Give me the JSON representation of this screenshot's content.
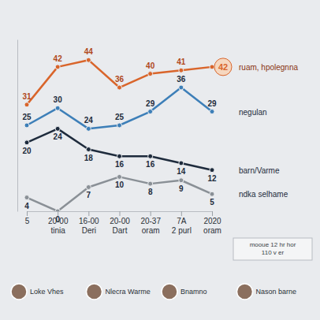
{
  "chart_data": {
    "type": "line",
    "categories": [
      "5",
      "20-00 tinia",
      "16-00 Deri",
      "20-00 Dart",
      "20-37 oram",
      "7A 2 purl",
      "2020 oram"
    ],
    "series": [
      {
        "name": "ruam, hpolegnna",
        "color": "#d9652b",
        "values": [
          31,
          42,
          44,
          36,
          40,
          41,
          42
        ]
      },
      {
        "name": "negulan",
        "color": "#3d7fb8",
        "values": [
          25,
          30,
          24,
          25,
          29,
          36,
          29
        ]
      },
      {
        "name": "barn/Varme",
        "color": "#1e2b3c",
        "values": [
          20,
          24,
          18,
          16,
          16,
          14,
          12
        ]
      },
      {
        "name": "ndka selhame",
        "color": "#8a9096",
        "values": [
          4,
          0,
          7,
          10,
          8,
          9,
          5
        ]
      }
    ],
    "ylim": [
      0,
      50
    ],
    "tick_labels": "x",
    "data_labels": true,
    "marker": "circle",
    "annotations": [
      "Loke Vhes",
      "Nlecra Warme",
      "Bnamno",
      "Nason barne",
      "mooue 12 hr hor 110 v er"
    ]
  }
}
